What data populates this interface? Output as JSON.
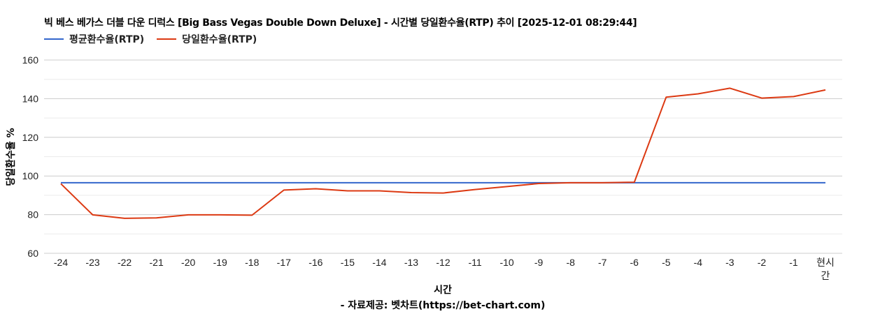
{
  "title": "빅 베스 베가스 더블 다운 디럭스 [Big Bass Vegas Double Down Deluxe] - 시간별 당일환수율(RTP) 추이 [2025-12-01 08:29:44]",
  "legend": [
    {
      "label": "평균환수율(RTP)",
      "color": "#3366cc"
    },
    {
      "label": "당일환수율(RTP)",
      "color": "#dc3912"
    }
  ],
  "source_note": "- 자료제공: 벳차트(https://bet-chart.com)",
  "chart_data": {
    "type": "line",
    "title": "빅 베스 베가스 더블 다운 디럭스 [Big Bass Vegas Double Down Deluxe] - 시간별 당일환수율(RTP) 추이 [2025-12-01 08:29:44]",
    "xlabel": "시간",
    "ylabel": "당일환수율 %",
    "ylim": [
      60,
      160
    ],
    "yticks": [
      60,
      80,
      100,
      120,
      140,
      160
    ],
    "grid": true,
    "legend_position": "top",
    "categories": [
      "-24",
      "-23",
      "-22",
      "-21",
      "-20",
      "-19",
      "-18",
      "-17",
      "-16",
      "-15",
      "-14",
      "-13",
      "-12",
      "-11",
      "-10",
      "-9",
      "-8",
      "-7",
      "-6",
      "-5",
      "-4",
      "-3",
      "-2",
      "-1",
      "현시간"
    ],
    "series": [
      {
        "name": "평균환수율(RTP)",
        "color": "#3366cc",
        "values": [
          96.5,
          96.5,
          96.5,
          96.5,
          96.5,
          96.5,
          96.5,
          96.5,
          96.5,
          96.5,
          96.5,
          96.5,
          96.5,
          96.5,
          96.5,
          96.5,
          96.5,
          96.5,
          96.5,
          96.5,
          96.5,
          96.5,
          96.5,
          96.5,
          96.5
        ]
      },
      {
        "name": "당일환수율(RTP)",
        "color": "#dc3912",
        "values": [
          96.0,
          79.9,
          78.1,
          78.3,
          79.9,
          79.9,
          79.7,
          92.7,
          93.4,
          92.3,
          92.3,
          91.4,
          91.2,
          93.0,
          94.5,
          96.1,
          96.5,
          96.5,
          96.8,
          140.8,
          142.5,
          145.4,
          140.3,
          141.1,
          144.5
        ]
      }
    ]
  }
}
